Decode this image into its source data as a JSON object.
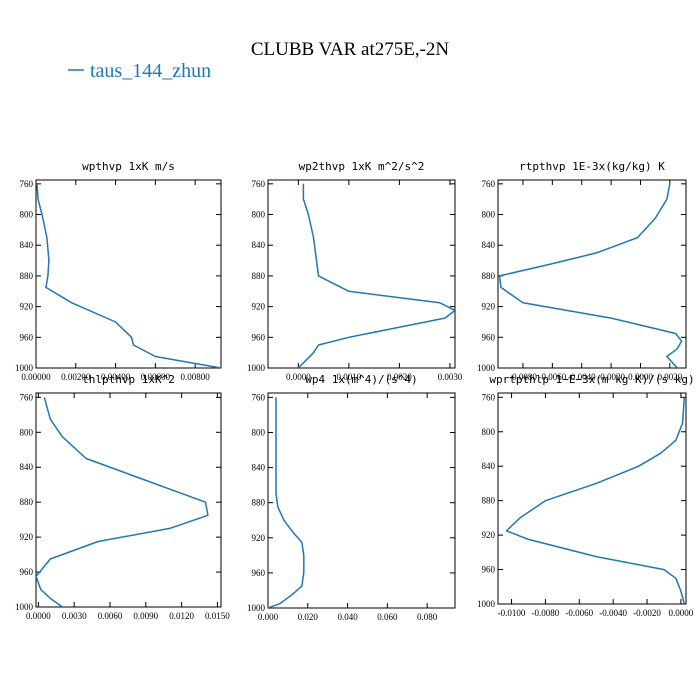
{
  "title": "CLUBB VAR at275E,-2N",
  "legend": {
    "label": "taus_144_zhun",
    "color": "#1f77b4"
  },
  "series_color": "#1f77b4",
  "chart_data": [
    {
      "type": "line",
      "title": "wpthvp  1xK m/s",
      "series": [
        {
          "name": "taus_144_zhun",
          "x": [
            5e-05,
            0.0001,
            0.0003,
            0.00055,
            0.00065,
            0.0006,
            0.0005,
            0.0018,
            0.004,
            0.0048,
            0.0049,
            0.006,
            0.0093
          ],
          "y": [
            760,
            780,
            800,
            830,
            860,
            880,
            895,
            915,
            940,
            960,
            970,
            985,
            1000
          ]
        }
      ],
      "xlim": [
        0.0,
        0.0093
      ],
      "xticks": [
        0.0,
        0.002,
        0.004,
        0.006,
        0.008
      ],
      "xtick_labels": [
        "0.00000",
        "0.00200",
        "0.00400",
        "0.00600",
        "0.00800"
      ],
      "ylim": [
        1000,
        755
      ],
      "yticks": [
        760,
        800,
        840,
        880,
        920,
        960,
        1000
      ],
      "ytick_labels": [
        "760",
        "800",
        "840",
        "880",
        "920",
        "960",
        "1000"
      ],
      "xlabel": "",
      "ylabel": ""
    },
    {
      "type": "line",
      "title": "wp2thvp  1xK m^2/s^2",
      "series": [
        {
          "name": "taus_144_zhun",
          "x": [
            0.0001,
            0.0001,
            0.0002,
            0.0003,
            0.0004,
            0.001,
            0.0028,
            0.0031,
            0.0029,
            0.001,
            0.0004,
            0.0003,
            0.0
          ],
          "y": [
            760,
            780,
            800,
            830,
            880,
            900,
            915,
            925,
            935,
            960,
            970,
            980,
            1000
          ]
        }
      ],
      "xlim": [
        -0.0006,
        0.0031
      ],
      "xticks": [
        0.0,
        0.001,
        0.002,
        0.003
      ],
      "xtick_labels": [
        "0.0000",
        "0.0010",
        "0.0020",
        "0.0030"
      ],
      "ylim": [
        1000,
        755
      ],
      "yticks": [
        760,
        800,
        840,
        880,
        920,
        960,
        1000
      ],
      "ytick_labels": [
        "760",
        "800",
        "840",
        "880",
        "920",
        "960",
        "1000"
      ],
      "xlabel": "",
      "ylabel": ""
    },
    {
      "type": "line",
      "title": "rtpthvp  1E-3x(kg/kg) K",
      "series": [
        {
          "name": "taus_144_zhun",
          "x": [
            0.002,
            0.0018,
            0.001,
            -0.0002,
            -0.003,
            -0.0062,
            -0.0096,
            -0.0095,
            -0.008,
            -0.002,
            0.0024,
            0.0028,
            0.0025,
            0.0018,
            0.0025
          ],
          "y": [
            760,
            780,
            805,
            830,
            850,
            865,
            880,
            895,
            915,
            935,
            955,
            965,
            975,
            985,
            1000
          ]
        }
      ],
      "xlim": [
        -0.0097,
        0.0031
      ],
      "xticks": [
        -0.008,
        -0.006,
        -0.004,
        -0.002,
        0.0,
        0.002
      ],
      "xtick_labels": [
        "-0.0080",
        "-0.0060",
        "-0.0040",
        "-0.0020",
        "0.0000",
        "0.0020"
      ],
      "ylim": [
        1000,
        755
      ],
      "yticks": [
        760,
        800,
        840,
        880,
        920,
        960,
        1000
      ],
      "ytick_labels": [
        "760",
        "800",
        "840",
        "880",
        "920",
        "960",
        "1000"
      ],
      "xlabel": "",
      "ylabel": ""
    },
    {
      "type": "line",
      "title": "thlpthvp  1xK^2",
      "series": [
        {
          "name": "taus_144_zhun",
          "x": [
            0.0005,
            0.001,
            0.002,
            0.004,
            0.008,
            0.012,
            0.014,
            0.0142,
            0.011,
            0.005,
            0.001,
            -0.0002,
            0.0002,
            0.001,
            0.002
          ],
          "y": [
            760,
            785,
            805,
            830,
            850,
            870,
            880,
            895,
            910,
            925,
            945,
            965,
            980,
            990,
            1000
          ]
        }
      ],
      "xlim": [
        -0.0002,
        0.0153
      ],
      "xticks": [
        0.0,
        0.003,
        0.006,
        0.009,
        0.012,
        0.015
      ],
      "xtick_labels": [
        "0.0000",
        "0.0030",
        "0.0060",
        "0.0090",
        "0.0120",
        "0.0150"
      ],
      "ylim": [
        1000,
        755
      ],
      "yticks": [
        760,
        800,
        840,
        880,
        920,
        960,
        1000
      ],
      "ytick_labels": [
        "760",
        "800",
        "840",
        "880",
        "920",
        "960",
        "1000"
      ],
      "xlabel": "",
      "ylabel": ""
    },
    {
      "type": "line",
      "title": "wp4   1x(m^4)/(s^4)",
      "series": [
        {
          "name": "taus_144_zhun",
          "x": [
            0.004,
            0.004,
            0.004,
            0.004,
            0.005,
            0.008,
            0.013,
            0.017,
            0.018,
            0.018,
            0.017,
            0.012,
            0.006,
            0.0
          ],
          "y": [
            760,
            800,
            840,
            870,
            885,
            900,
            915,
            925,
            940,
            960,
            975,
            985,
            995,
            1000
          ]
        }
      ],
      "xlim": [
        0.0,
        0.094
      ],
      "xticks": [
        0.0,
        0.02,
        0.04,
        0.06,
        0.08
      ],
      "xtick_labels": [
        "0.000",
        "0.020",
        "0.040",
        "0.060",
        "0.080"
      ],
      "ylim": [
        1000,
        755
      ],
      "yticks": [
        760,
        800,
        840,
        880,
        920,
        960,
        1000
      ],
      "ytick_labels": [
        "760",
        "800",
        "840",
        "880",
        "920",
        "960",
        "1000"
      ],
      "xlabel": "",
      "ylabel": ""
    },
    {
      "type": "line",
      "title": "wprtpthlp  1−E−3x(m kg K)/(s kg)",
      "series": [
        {
          "name": "taus_144_zhun",
          "x": [
            0.0002,
            0.0001,
            -0.0003,
            -0.0012,
            -0.0025,
            -0.005,
            -0.008,
            -0.0095,
            -0.0103,
            -0.009,
            -0.005,
            -0.001,
            -0.0003,
            0.0,
            0.0002
          ],
          "y": [
            760,
            790,
            810,
            825,
            840,
            860,
            880,
            900,
            915,
            925,
            945,
            960,
            970,
            985,
            1000
          ]
        }
      ],
      "xlim": [
        -0.0108,
        0.0003
      ],
      "xticks": [
        -0.01,
        -0.008,
        -0.006,
        -0.004,
        -0.002,
        0.0
      ],
      "xtick_labels": [
        "-0.0100",
        "-0.0080",
        "-0.0060",
        "-0.0040",
        "-0.0020",
        "0.0000"
      ],
      "ylim": [
        1000,
        755
      ],
      "yticks": [
        760,
        800,
        840,
        880,
        920,
        960,
        1000
      ],
      "ytick_labels": [
        "760",
        "800",
        "840",
        "880",
        "920",
        "960",
        "1000"
      ],
      "xlabel": "",
      "ylabel": ""
    }
  ]
}
